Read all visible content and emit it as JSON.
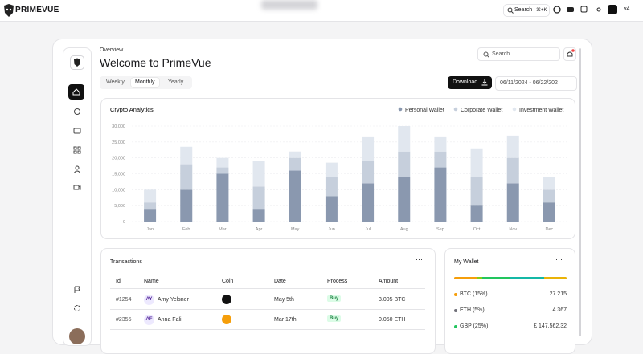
{
  "nav": {
    "brand": "PRIMEVUE",
    "search": "Search",
    "shortcut": "⌘+K",
    "version": "v4"
  },
  "header": {
    "eyebrow": "Overview",
    "title": "Welcome to PrimeVue",
    "search": "Search"
  },
  "tabs": [
    "Weekly",
    "Monthly",
    "Yearly"
  ],
  "toolbar": {
    "download": "Download",
    "date_range": "06/11/2024 - 06/22/202"
  },
  "chart_data": {
    "type": "bar",
    "stacked": true,
    "title": "Crypto Analytics",
    "categories": [
      "Jan",
      "Feb",
      "Mar",
      "Apr",
      "May",
      "Jun",
      "Jul",
      "Aug",
      "Sep",
      "Oct",
      "Nov",
      "Dec"
    ],
    "series": [
      {
        "name": "Personal Wallet",
        "color": "#8a98af",
        "values": [
          4000,
          10000,
          15000,
          4000,
          16000,
          8000,
          12000,
          14000,
          17000,
          5000,
          12000,
          6000
        ]
      },
      {
        "name": "Corporate Wallet",
        "color": "#c6cfdc",
        "values": [
          2000,
          8000,
          2000,
          7000,
          4000,
          6000,
          7000,
          8000,
          5000,
          9000,
          8000,
          4000
        ]
      },
      {
        "name": "Investment Wallet",
        "color": "#e1e7ef",
        "values": [
          4000,
          5500,
          3000,
          8000,
          2000,
          4500,
          7500,
          8000,
          4500,
          9000,
          7000,
          4000
        ]
      }
    ],
    "ylim": [
      0,
      30000
    ],
    "yticks": [
      0,
      {
        "value": 5000,
        "label": "5,000"
      },
      {
        "value": 10000,
        "label": "10,000"
      },
      {
        "value": 15000,
        "label": "15,000"
      },
      {
        "value": 20000,
        "label": "20,000"
      },
      {
        "value": 25000,
        "label": "25,000"
      },
      {
        "value": 30000,
        "label": "30,000"
      }
    ],
    "grid": true,
    "legend": "top-right"
  },
  "transactions": {
    "title": "Transactions",
    "columns": [
      "Id",
      "Name",
      "Coin",
      "Date",
      "Process",
      "Amount"
    ],
    "rows": [
      {
        "id": "#1254",
        "initials": "AY",
        "name": "Amy Yelsner",
        "date": "May 5th",
        "process": "Buy",
        "amount": "3.005 BTC"
      },
      {
        "id": "#2355",
        "initials": "AF",
        "name": "Anna Fali",
        "date": "Mar 17th",
        "process": "Buy",
        "amount": "0.050 ETH"
      }
    ]
  },
  "wallet": {
    "title": "My Wallet",
    "rows": [
      {
        "label": "BTC (15%)",
        "value": "27.215"
      },
      {
        "label": "ETH (5%)",
        "value": "4.367"
      },
      {
        "label": "GBP (25%)",
        "value": "£ 147.562,32"
      }
    ]
  }
}
